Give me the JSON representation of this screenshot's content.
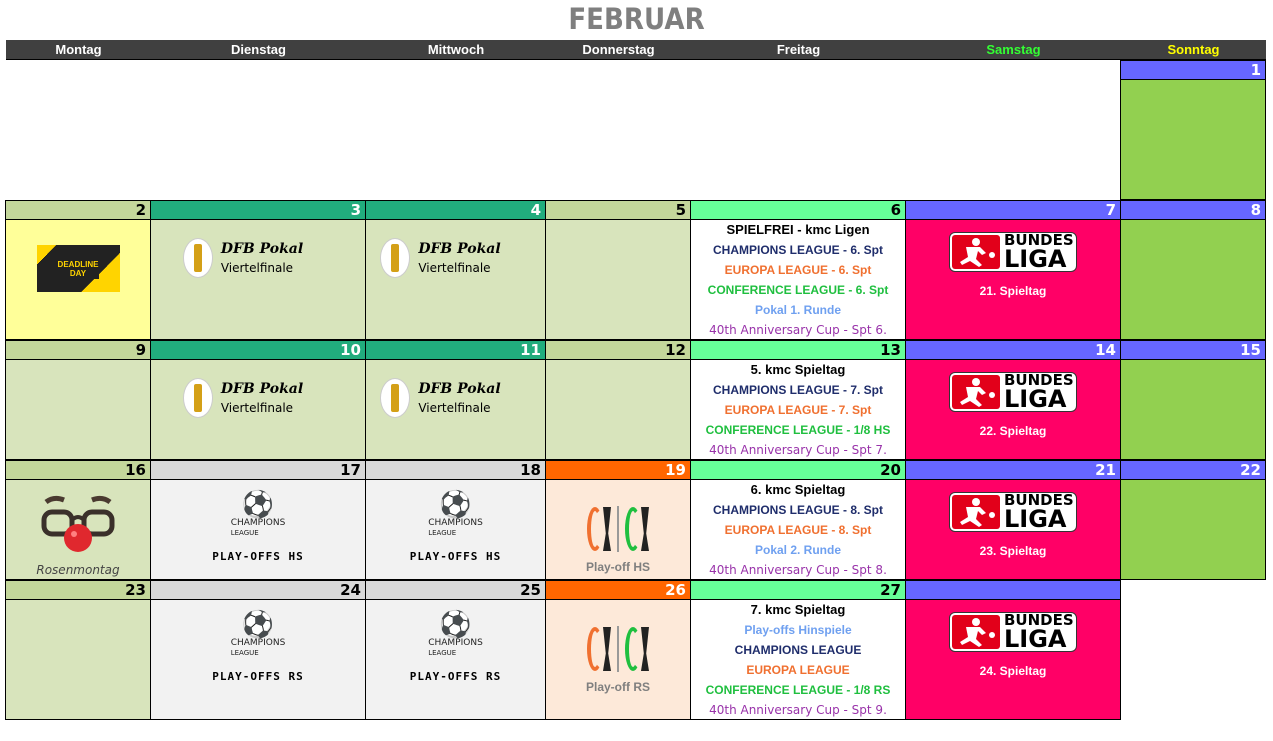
{
  "title": "FEBRUAR",
  "weekdays": [
    {
      "label": "Montag",
      "color": "#ffffff"
    },
    {
      "label": "Dienstag",
      "color": "#ffffff"
    },
    {
      "label": "Mittwoch",
      "color": "#ffffff"
    },
    {
      "label": "Donnerstag",
      "color": "#ffffff"
    },
    {
      "label": "Freitag",
      "color": "#ffffff"
    },
    {
      "label": "Samstag",
      "color": "#33ff33"
    },
    {
      "label": "Sonntag",
      "color": "#ffff00"
    }
  ],
  "colors": {
    "cl": "#1f2d6b",
    "el": "#f07030",
    "conf": "#1fbf3f",
    "pokal": "#6fa0f0",
    "anniv": "#9933aa"
  },
  "weeks": [
    [
      null,
      null,
      null,
      null,
      null,
      null,
      {
        "num": "1",
        "hd": "#6666ff",
        "fg": "#fff",
        "bg": "#92d050",
        "type": "empty"
      }
    ],
    [
      {
        "num": "2",
        "hd": "#c4d79b",
        "fg": "#000",
        "bg": "#ffff99",
        "type": "deadline",
        "logo_text": "DEADLINE DAY"
      },
      {
        "num": "3",
        "hd": "#21ac7d",
        "fg": "#fff",
        "bg": "#d8e4bc",
        "type": "dfb",
        "title": "DFB Pokal",
        "sub": "Viertelfinale"
      },
      {
        "num": "4",
        "hd": "#21ac7d",
        "fg": "#fff",
        "bg": "#d8e4bc",
        "type": "dfb",
        "title": "DFB Pokal",
        "sub": "Viertelfinale"
      },
      {
        "num": "5",
        "hd": "#c4d79b",
        "fg": "#000",
        "bg": "#d8e4bc",
        "type": "empty"
      },
      {
        "num": "6",
        "hd": "#66ff99",
        "fg": "#000",
        "bg": "#ffffff",
        "type": "lines",
        "lines": [
          {
            "text": "SPIELFREI - kmc Ligen",
            "c": "first"
          },
          {
            "text": "CHAMPIONS LEAGUE - 6. Spt",
            "c": "cl"
          },
          {
            "text": "EUROPA LEAGUE - 6. Spt",
            "c": "el"
          },
          {
            "text": "CONFERENCE LEAGUE - 6. Spt",
            "c": "conf"
          },
          {
            "text": "Pokal 1. Runde",
            "c": "pokal"
          },
          {
            "text": "40th Anniversary Cup - Spt 6.",
            "c": "anniv"
          }
        ]
      },
      {
        "num": "7",
        "hd": "#6666ff",
        "fg": "#fff",
        "bg": "#ff0066",
        "type": "bundesliga",
        "logo_text": "BUNDES LIGA",
        "caption": "21. Spieltag"
      },
      {
        "num": "8",
        "hd": "#6666ff",
        "fg": "#fff",
        "bg": "#92d050",
        "type": "empty"
      }
    ],
    [
      {
        "num": "9",
        "hd": "#c4d79b",
        "fg": "#000",
        "bg": "#d8e4bc",
        "type": "empty"
      },
      {
        "num": "10",
        "hd": "#21ac7d",
        "fg": "#fff",
        "bg": "#d8e4bc",
        "type": "dfb",
        "title": "DFB Pokal",
        "sub": "Viertelfinale"
      },
      {
        "num": "11",
        "hd": "#21ac7d",
        "fg": "#fff",
        "bg": "#d8e4bc",
        "type": "dfb",
        "title": "DFB Pokal",
        "sub": "Viertelfinale"
      },
      {
        "num": "12",
        "hd": "#c4d79b",
        "fg": "#000",
        "bg": "#d8e4bc",
        "type": "empty"
      },
      {
        "num": "13",
        "hd": "#66ff99",
        "fg": "#000",
        "bg": "#ffffff",
        "type": "lines",
        "lines": [
          {
            "text": "5. kmc Spieltag",
            "c": "first"
          },
          {
            "text": "CHAMPIONS LEAGUE - 7. Spt",
            "c": "cl"
          },
          {
            "text": "EUROPA LEAGUE - 7. Spt",
            "c": "el"
          },
          {
            "text": "CONFERENCE LEAGUE - 1/8 HS",
            "c": "conf"
          },
          {
            "text": "40th Anniversary Cup - Spt 7.",
            "c": "anniv"
          }
        ]
      },
      {
        "num": "14",
        "hd": "#6666ff",
        "fg": "#fff",
        "bg": "#ff0066",
        "type": "bundesliga",
        "logo_text": "BUNDES LIGA",
        "caption": "22. Spieltag"
      },
      {
        "num": "15",
        "hd": "#6666ff",
        "fg": "#fff",
        "bg": "#92d050",
        "type": "empty"
      }
    ],
    [
      {
        "num": "16",
        "hd": "#c4d79b",
        "fg": "#000",
        "bg": "#d8e4bc",
        "type": "rosenmontag",
        "caption": "Rosenmontag"
      },
      {
        "num": "17",
        "hd": "#d9d9d9",
        "fg": "#000",
        "bg": "#f2f2f2",
        "type": "ucl",
        "logo_text": "CHAMPIONS LEAGUE",
        "caption": "PLAY-OFFS HS"
      },
      {
        "num": "18",
        "hd": "#d9d9d9",
        "fg": "#000",
        "bg": "#f2f2f2",
        "type": "ucl",
        "logo_text": "CHAMPIONS LEAGUE",
        "caption": "PLAY-OFFS HS"
      },
      {
        "num": "19",
        "hd": "#ff6600",
        "fg": "#fff",
        "bg": "#fde9d9",
        "type": "uel",
        "caption": "Play-off HS"
      },
      {
        "num": "20",
        "hd": "#66ff99",
        "fg": "#000",
        "bg": "#ffffff",
        "type": "lines",
        "lines": [
          {
            "text": "6. kmc Spieltag",
            "c": "first"
          },
          {
            "text": "CHAMPIONS LEAGUE - 8. Spt",
            "c": "cl"
          },
          {
            "text": "EUROPA LEAGUE - 8. Spt",
            "c": "el"
          },
          {
            "text": "Pokal 2. Runde",
            "c": "pokal"
          },
          {
            "text": "40th Anniversary Cup - Spt 8.",
            "c": "anniv"
          }
        ]
      },
      {
        "num": "21",
        "hd": "#6666ff",
        "fg": "#fff",
        "bg": "#ff0066",
        "type": "bundesliga",
        "logo_text": "BUNDES LIGA",
        "caption": "23. Spieltag"
      },
      {
        "num": "22",
        "hd": "#6666ff",
        "fg": "#fff",
        "bg": "#92d050",
        "type": "empty"
      }
    ],
    [
      {
        "num": "23",
        "hd": "#c4d79b",
        "fg": "#000",
        "bg": "#d8e4bc",
        "type": "empty"
      },
      {
        "num": "24",
        "hd": "#d9d9d9",
        "fg": "#000",
        "bg": "#f2f2f2",
        "type": "ucl",
        "logo_text": "CHAMPIONS LEAGUE",
        "caption": "PLAY-OFFS RS"
      },
      {
        "num": "25",
        "hd": "#d9d9d9",
        "fg": "#000",
        "bg": "#f2f2f2",
        "type": "ucl",
        "logo_text": "CHAMPIONS LEAGUE",
        "caption": "PLAY-OFFS RS"
      },
      {
        "num": "26",
        "hd": "#ff6600",
        "fg": "#fff",
        "bg": "#fde9d9",
        "type": "uel",
        "caption": "Play-off RS"
      },
      {
        "num": "27",
        "hd": "#66ff99",
        "fg": "#000",
        "bg": "#ffffff",
        "type": "lines",
        "lines": [
          {
            "text": "7. kmc Spieltag",
            "c": "first"
          },
          {
            "text": "Play-offs Hinspiele",
            "c": "pokal"
          },
          {
            "text": "CHAMPIONS LEAGUE",
            "c": "cl"
          },
          {
            "text": "EUROPA LEAGUE",
            "c": "el"
          },
          {
            "text": "CONFERENCE LEAGUE - 1/8 RS",
            "c": "conf"
          },
          {
            "text": "40th Anniversary Cup - Spt 9.",
            "c": "anniv"
          }
        ]
      },
      {
        "num": "",
        "hd": "#6666ff",
        "fg": "#fff",
        "bg": "#ff0066",
        "type": "bundesliga",
        "logo_text": "BUNDES LIGA",
        "caption": "24. Spieltag"
      },
      null
    ]
  ]
}
